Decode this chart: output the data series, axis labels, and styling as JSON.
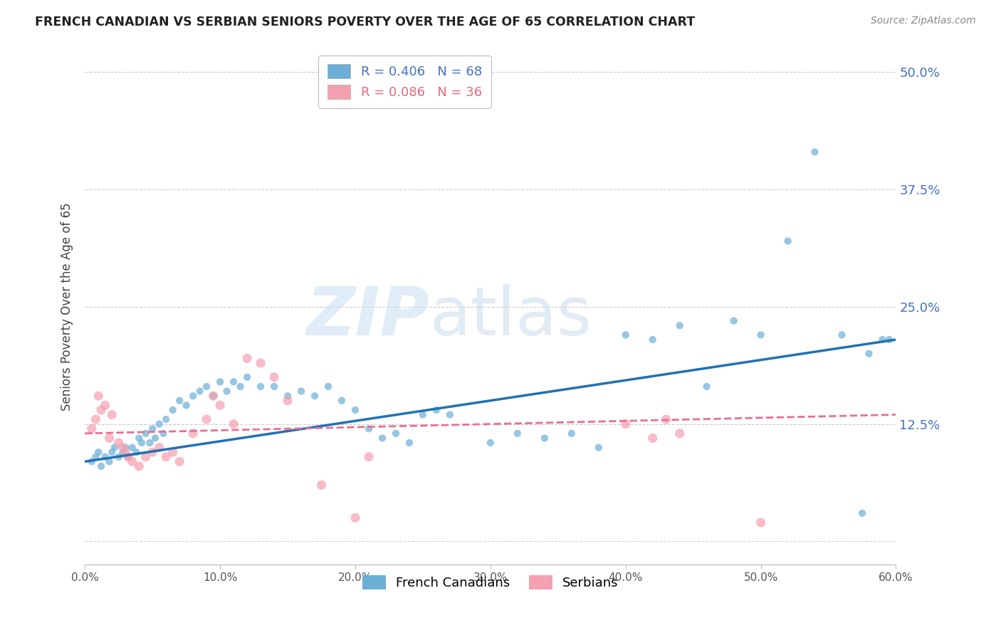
{
  "title": "FRENCH CANADIAN VS SERBIAN SENIORS POVERTY OVER THE AGE OF 65 CORRELATION CHART",
  "source": "Source: ZipAtlas.com",
  "ylabel": "Seniors Poverty Over the Age of 65",
  "xlim": [
    0.0,
    0.6
  ],
  "ylim": [
    -0.025,
    0.525
  ],
  "xticks": [
    0.0,
    0.1,
    0.2,
    0.3,
    0.4,
    0.5,
    0.6
  ],
  "yticks": [
    0.0,
    0.125,
    0.25,
    0.375,
    0.5
  ],
  "ytick_labels": [
    "",
    "12.5%",
    "25.0%",
    "37.5%",
    "50.0%"
  ],
  "xtick_labels": [
    "0.0%",
    "10.0%",
    "20.0%",
    "30.0%",
    "40.0%",
    "50.0%",
    "60.0%"
  ],
  "french_R": 0.406,
  "french_N": 68,
  "serbian_R": 0.086,
  "serbian_N": 36,
  "french_color": "#6baed6",
  "serbian_color": "#f4a0b0",
  "french_line_color": "#2171b5",
  "serbian_line_color": "#e87090",
  "legend_labels": [
    "French Canadians",
    "Serbians"
  ],
  "french_x": [
    0.005,
    0.008,
    0.01,
    0.012,
    0.015,
    0.018,
    0.02,
    0.022,
    0.025,
    0.028,
    0.03,
    0.032,
    0.035,
    0.038,
    0.04,
    0.042,
    0.045,
    0.048,
    0.05,
    0.052,
    0.055,
    0.058,
    0.06,
    0.065,
    0.07,
    0.075,
    0.08,
    0.085,
    0.09,
    0.095,
    0.1,
    0.105,
    0.11,
    0.115,
    0.12,
    0.13,
    0.14,
    0.15,
    0.16,
    0.17,
    0.18,
    0.19,
    0.2,
    0.21,
    0.22,
    0.23,
    0.24,
    0.25,
    0.26,
    0.27,
    0.3,
    0.32,
    0.34,
    0.36,
    0.38,
    0.4,
    0.42,
    0.44,
    0.46,
    0.48,
    0.5,
    0.52,
    0.54,
    0.56,
    0.575,
    0.58,
    0.59,
    0.595
  ],
  "french_y": [
    0.085,
    0.09,
    0.095,
    0.08,
    0.09,
    0.085,
    0.095,
    0.1,
    0.09,
    0.095,
    0.1,
    0.09,
    0.1,
    0.095,
    0.11,
    0.105,
    0.115,
    0.105,
    0.12,
    0.11,
    0.125,
    0.115,
    0.13,
    0.14,
    0.15,
    0.145,
    0.155,
    0.16,
    0.165,
    0.155,
    0.17,
    0.16,
    0.17,
    0.165,
    0.175,
    0.165,
    0.165,
    0.155,
    0.16,
    0.155,
    0.165,
    0.15,
    0.14,
    0.12,
    0.11,
    0.115,
    0.105,
    0.135,
    0.14,
    0.135,
    0.105,
    0.115,
    0.11,
    0.115,
    0.1,
    0.22,
    0.215,
    0.23,
    0.165,
    0.235,
    0.22,
    0.32,
    0.415,
    0.22,
    0.03,
    0.2,
    0.215,
    0.215
  ],
  "serbian_x": [
    0.005,
    0.008,
    0.01,
    0.012,
    0.015,
    0.018,
    0.02,
    0.025,
    0.028,
    0.03,
    0.032,
    0.035,
    0.04,
    0.045,
    0.05,
    0.055,
    0.06,
    0.065,
    0.07,
    0.08,
    0.09,
    0.095,
    0.1,
    0.11,
    0.12,
    0.13,
    0.14,
    0.15,
    0.175,
    0.2,
    0.21,
    0.4,
    0.42,
    0.43,
    0.44,
    0.5
  ],
  "serbian_y": [
    0.12,
    0.13,
    0.155,
    0.14,
    0.145,
    0.11,
    0.135,
    0.105,
    0.1,
    0.095,
    0.09,
    0.085,
    0.08,
    0.09,
    0.095,
    0.1,
    0.09,
    0.095,
    0.085,
    0.115,
    0.13,
    0.155,
    0.145,
    0.125,
    0.195,
    0.19,
    0.175,
    0.15,
    0.06,
    0.025,
    0.09,
    0.125,
    0.11,
    0.13,
    0.115,
    0.02
  ]
}
